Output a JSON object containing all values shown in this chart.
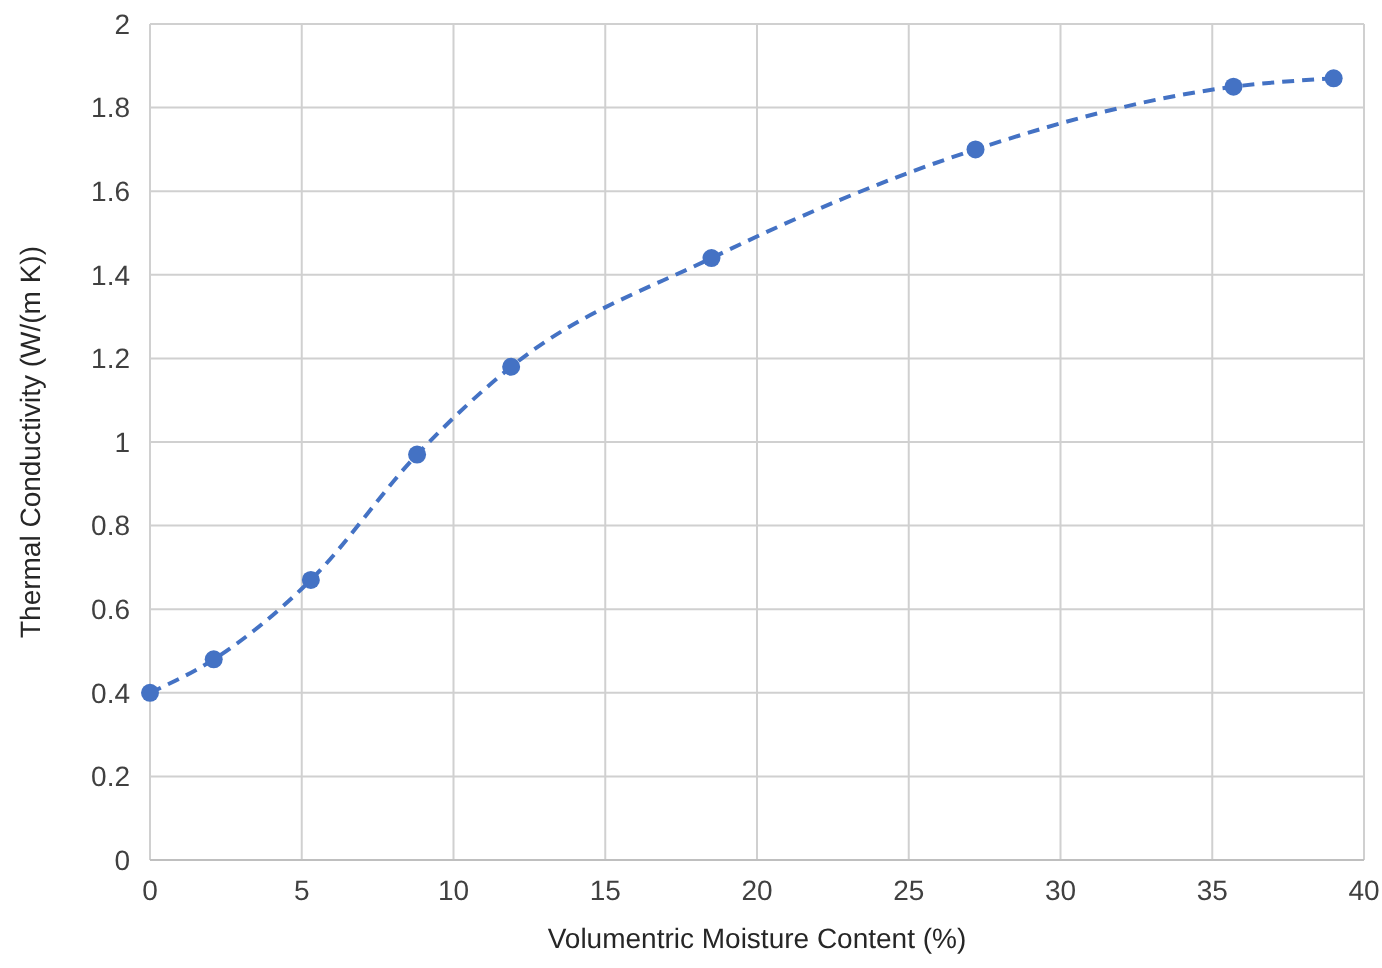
{
  "chart_data": {
    "type": "line",
    "xlabel": "Volumentric Moisture Content (%)",
    "ylabel": "Thermal Conductivity (W/(m K))",
    "x": [
      0,
      2.1,
      5.3,
      8.8,
      11.9,
      18.5,
      27.2,
      35.7,
      39
    ],
    "series": [
      {
        "color": "#4472c4",
        "values": [
          0.4,
          0.48,
          0.67,
          0.97,
          1.18,
          1.44,
          1.7,
          1.85,
          1.87
        ]
      }
    ],
    "xlim": [
      0,
      40
    ],
    "xticks": [
      0,
      5,
      10,
      15,
      20,
      25,
      30,
      35,
      40
    ],
    "ylim": [
      0,
      2
    ],
    "yticks": [
      0,
      0.2,
      0.4,
      0.6,
      0.8,
      1,
      1.2,
      1.4,
      1.6,
      1.8,
      2
    ],
    "grid": true,
    "marker": "circle",
    "line_style": "dashed"
  }
}
